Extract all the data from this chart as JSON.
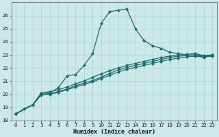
{
  "xlabel": "Humidex (Indice chaleur)",
  "xlim": [
    -0.5,
    23.5
  ],
  "ylim": [
    18,
    27
  ],
  "yticks": [
    18,
    19,
    20,
    21,
    22,
    23,
    24,
    25,
    26
  ],
  "xticks": [
    0,
    1,
    2,
    3,
    4,
    5,
    6,
    7,
    8,
    9,
    10,
    11,
    12,
    13,
    14,
    15,
    16,
    17,
    18,
    19,
    20,
    21,
    22,
    23
  ],
  "background_color": "#cce8e8",
  "grid_color": "#b0d4d4",
  "line_color": "#1a6b6b",
  "series": [
    {
      "x": [
        0,
        1,
        2,
        3,
        4,
        5,
        6,
        7,
        8,
        9,
        10,
        11,
        12,
        13,
        14,
        15,
        16,
        17,
        18,
        19,
        20,
        21,
        22,
        23
      ],
      "y": [
        18.5,
        18.9,
        19.2,
        20.1,
        20.1,
        20.5,
        21.4,
        21.5,
        22.2,
        23.1,
        25.4,
        26.3,
        26.4,
        26.5,
        25.0,
        24.1,
        23.7,
        23.5,
        23.2,
        23.1,
        23.0,
        23.0,
        22.8,
        23.0
      ]
    },
    {
      "x": [
        0,
        2,
        3,
        4,
        5,
        6,
        7,
        8,
        9,
        10,
        11,
        12,
        13,
        14,
        15,
        16,
        17,
        18,
        19,
        20,
        21,
        22,
        23
      ],
      "y": [
        18.5,
        19.2,
        20.1,
        20.2,
        20.35,
        20.55,
        20.8,
        21.0,
        21.3,
        21.55,
        21.8,
        22.0,
        22.2,
        22.35,
        22.5,
        22.65,
        22.8,
        22.9,
        23.0,
        23.05,
        23.1,
        22.95,
        23.0
      ]
    },
    {
      "x": [
        0,
        2,
        3,
        4,
        5,
        6,
        7,
        8,
        9,
        10,
        11,
        12,
        13,
        14,
        15,
        16,
        17,
        18,
        19,
        20,
        21,
        22,
        23
      ],
      "y": [
        18.5,
        19.2,
        20.0,
        20.05,
        20.2,
        20.4,
        20.65,
        20.85,
        21.05,
        21.3,
        21.6,
        21.85,
        22.05,
        22.2,
        22.35,
        22.5,
        22.65,
        22.8,
        22.9,
        22.95,
        23.0,
        22.9,
        22.95
      ]
    },
    {
      "x": [
        0,
        2,
        3,
        4,
        5,
        6,
        7,
        8,
        9,
        10,
        11,
        12,
        13,
        14,
        15,
        16,
        17,
        18,
        19,
        20,
        21,
        22,
        23
      ],
      "y": [
        18.5,
        19.2,
        19.95,
        20.0,
        20.15,
        20.35,
        20.55,
        20.75,
        20.95,
        21.2,
        21.45,
        21.7,
        21.9,
        22.05,
        22.2,
        22.35,
        22.5,
        22.65,
        22.75,
        22.85,
        22.9,
        22.85,
        22.9
      ]
    }
  ]
}
